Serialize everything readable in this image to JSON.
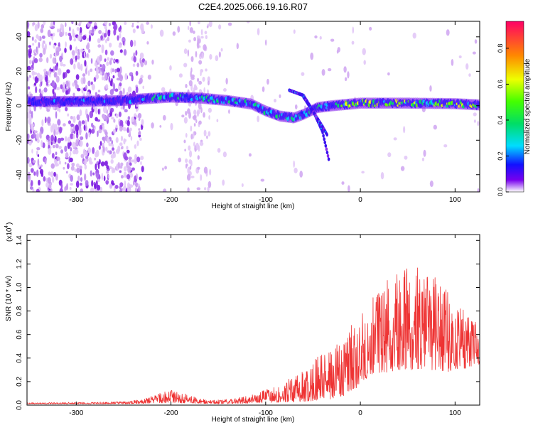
{
  "title": "C2E4.2025.066.19.16.R07",
  "chart_data": [
    {
      "type": "heatmap",
      "xlabel": "Height of straight line (km)",
      "ylabel": "Frequency (Hz)",
      "xlim": [
        -352,
        126
      ],
      "ylim": [
        -50,
        49
      ],
      "xticks": [
        -300,
        -200,
        -100,
        0,
        100
      ],
      "yticks": [
        -40,
        -20,
        0,
        20,
        40
      ],
      "colorbar": {
        "label": "Normalized spectral amplitude",
        "range": [
          0,
          0.95
        ],
        "ticks": [
          "0.0",
          "0.2",
          "0.4",
          "0.6",
          "0.8"
        ],
        "tick_values": [
          0,
          0.2,
          0.4,
          0.6,
          0.8
        ]
      },
      "ridge": [
        {
          "x": -340,
          "y": 2.5
        },
        {
          "x": -300,
          "y": 2.5
        },
        {
          "x": -250,
          "y": 3
        },
        {
          "x": -230,
          "y": 4
        },
        {
          "x": -200,
          "y": 5
        },
        {
          "x": -170,
          "y": 4.5
        },
        {
          "x": -140,
          "y": 3
        },
        {
          "x": -115,
          "y": 1
        },
        {
          "x": -100,
          "y": -3
        },
        {
          "x": -85,
          "y": -6
        },
        {
          "x": -70,
          "y": -7
        },
        {
          "x": -60,
          "y": -5
        },
        {
          "x": -45,
          "y": -1
        },
        {
          "x": -30,
          "y": 0
        },
        {
          "x": 0,
          "y": 1.5
        },
        {
          "x": 50,
          "y": 1.5
        },
        {
          "x": 100,
          "y": 1.2
        },
        {
          "x": 125,
          "y": 0.5
        }
      ],
      "branches": [
        {
          "x": [
            -75,
            -60,
            -50,
            -40,
            -33
          ],
          "y": [
            9,
            6,
            -3,
            -15,
            -32
          ]
        },
        {
          "x": [
            -60,
            -48,
            -40,
            -35
          ],
          "y": [
            5,
            -5,
            -12,
            -17
          ]
        }
      ]
    },
    {
      "type": "line",
      "xlabel": "Height of straight line (km)",
      "ylabel": "SNR (10 * v/v)",
      "yscale_note": "(x10",
      "yscale_exponent": "4",
      "xlim": [
        -352,
        126
      ],
      "ylim": [
        0,
        1.45
      ],
      "xticks": [
        -300,
        -200,
        -100,
        0,
        100
      ],
      "yticks": [
        "0.0",
        "0.2",
        "0.4",
        "0.6",
        "0.8",
        "1.0",
        "1.2",
        "1.4"
      ],
      "ytick_values": [
        0,
        0.2,
        0.4,
        0.6,
        0.8,
        1.0,
        1.2,
        1.4
      ],
      "color": "#ee3333",
      "envelope": {
        "x": [
          -352,
          -250,
          -230,
          -215,
          -205,
          -195,
          -180,
          -160,
          -140,
          -120,
          -100,
          -80,
          -60,
          -40,
          -20,
          -5,
          10,
          30,
          50,
          70,
          90,
          110,
          126
        ],
        "y": [
          0.02,
          0.03,
          0.05,
          0.09,
          0.13,
          0.13,
          0.08,
          0.04,
          0.05,
          0.08,
          0.13,
          0.2,
          0.3,
          0.45,
          0.55,
          0.75,
          0.9,
          1.1,
          1.2,
          1.15,
          1.0,
          0.8,
          0.7
        ]
      },
      "baseline": {
        "x": [
          -352,
          -250,
          -200,
          -150,
          -100,
          -60,
          -30,
          -10,
          10,
          40,
          70,
          100,
          126
        ],
        "y": [
          0.01,
          0.01,
          0.02,
          0.01,
          0.02,
          0.03,
          0.05,
          0.1,
          0.25,
          0.3,
          0.3,
          0.28,
          0.35
        ]
      }
    }
  ]
}
